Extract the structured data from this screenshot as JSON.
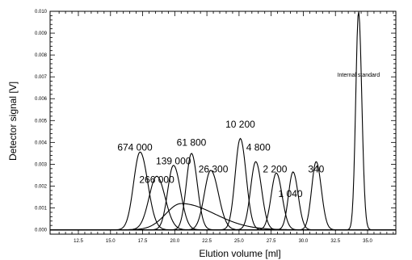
{
  "chart_data": {
    "type": "line",
    "xlabel": "Elution volume [ml]",
    "ylabel": "Detector signal [V]",
    "xlim": [
      10.3,
      37.2
    ],
    "ylim": [
      -0.0002,
      0.01
    ],
    "xticks": [
      "12.5",
      "15.0",
      "17.5",
      "20.0",
      "22.5",
      "25.0",
      "27.5",
      "30.0",
      "32.5",
      "35.0"
    ],
    "xtick_values": [
      12.5,
      15.0,
      17.5,
      20.0,
      22.5,
      25.0,
      27.5,
      30.0,
      32.5,
      35.0
    ],
    "yticks": [
      "0.000",
      "0.001",
      "0.002",
      "0.003",
      "0.004",
      "0.005",
      "0.006",
      "0.007",
      "0.008",
      "0.009",
      "0.010"
    ],
    "ytick_values": [
      0,
      0.001,
      0.002,
      0.003,
      0.004,
      0.005,
      0.006,
      0.007,
      0.008,
      0.009,
      0.01
    ],
    "grid": false,
    "legend": "none",
    "series": [
      {
        "center": 17.3,
        "height": 0.00356,
        "sigma_left": 0.5,
        "sigma_right": 0.6,
        "tail": 0.0
      },
      {
        "center": 18.6,
        "height": 0.00245,
        "sigma_left": 0.6,
        "sigma_right": 0.65,
        "tail": 0.0
      },
      {
        "center": 19.9,
        "height": 0.00295,
        "sigma_left": 0.45,
        "sigma_right": 0.55,
        "tail": 0.0
      },
      {
        "center": 21.3,
        "height": 0.0035,
        "sigma_left": 0.4,
        "sigma_right": 0.45,
        "tail": 0.0
      },
      {
        "center": 22.8,
        "height": 0.00272,
        "sigma_left": 0.5,
        "sigma_right": 0.6,
        "tail": 0.0
      },
      {
        "center": 25.1,
        "height": 0.00418,
        "sigma_left": 0.4,
        "sigma_right": 0.45,
        "tail": 0.0
      },
      {
        "center": 26.3,
        "height": 0.00312,
        "sigma_left": 0.4,
        "sigma_right": 0.45,
        "tail": 0.0
      },
      {
        "center": 27.9,
        "height": 0.0026,
        "sigma_left": 0.4,
        "sigma_right": 0.45,
        "tail": 0.0
      },
      {
        "center": 29.2,
        "height": 0.00265,
        "sigma_left": 0.35,
        "sigma_right": 0.4,
        "tail": 0.0
      },
      {
        "center": 31.0,
        "height": 0.00312,
        "sigma_left": 0.35,
        "sigma_right": 0.4,
        "tail": 0.0
      },
      {
        "center": 34.3,
        "height": 0.01,
        "sigma_left": 0.22,
        "sigma_right": 0.25,
        "tail": 0.0
      },
      {
        "center": 20.5,
        "height": 0.0012,
        "sigma_left": 1.2,
        "sigma_right": 2.6,
        "tail": 0.0
      }
    ],
    "annotations": [
      {
        "text": "674 000",
        "x": 16.9,
        "y": 0.00362
      },
      {
        "text": "266 000",
        "x": 18.6,
        "y": 0.00215
      },
      {
        "text": "139 000",
        "x": 19.9,
        "y": 0.003
      },
      {
        "text": "61 800",
        "x": 21.3,
        "y": 0.00385
      },
      {
        "text": "26 300",
        "x": 23.0,
        "y": 0.00262
      },
      {
        "text": "10 200",
        "x": 25.1,
        "y": 0.00468
      },
      {
        "text": "4 800",
        "x": 26.5,
        "y": 0.00362
      },
      {
        "text": "2 200",
        "x": 27.8,
        "y": 0.00262
      },
      {
        "text": "1 040",
        "x": 29.0,
        "y": 0.0015
      },
      {
        "text": "340",
        "x": 31.0,
        "y": 0.00262
      },
      {
        "text": "Internal standard",
        "x": 34.3,
        "y": 0.007
      }
    ]
  }
}
